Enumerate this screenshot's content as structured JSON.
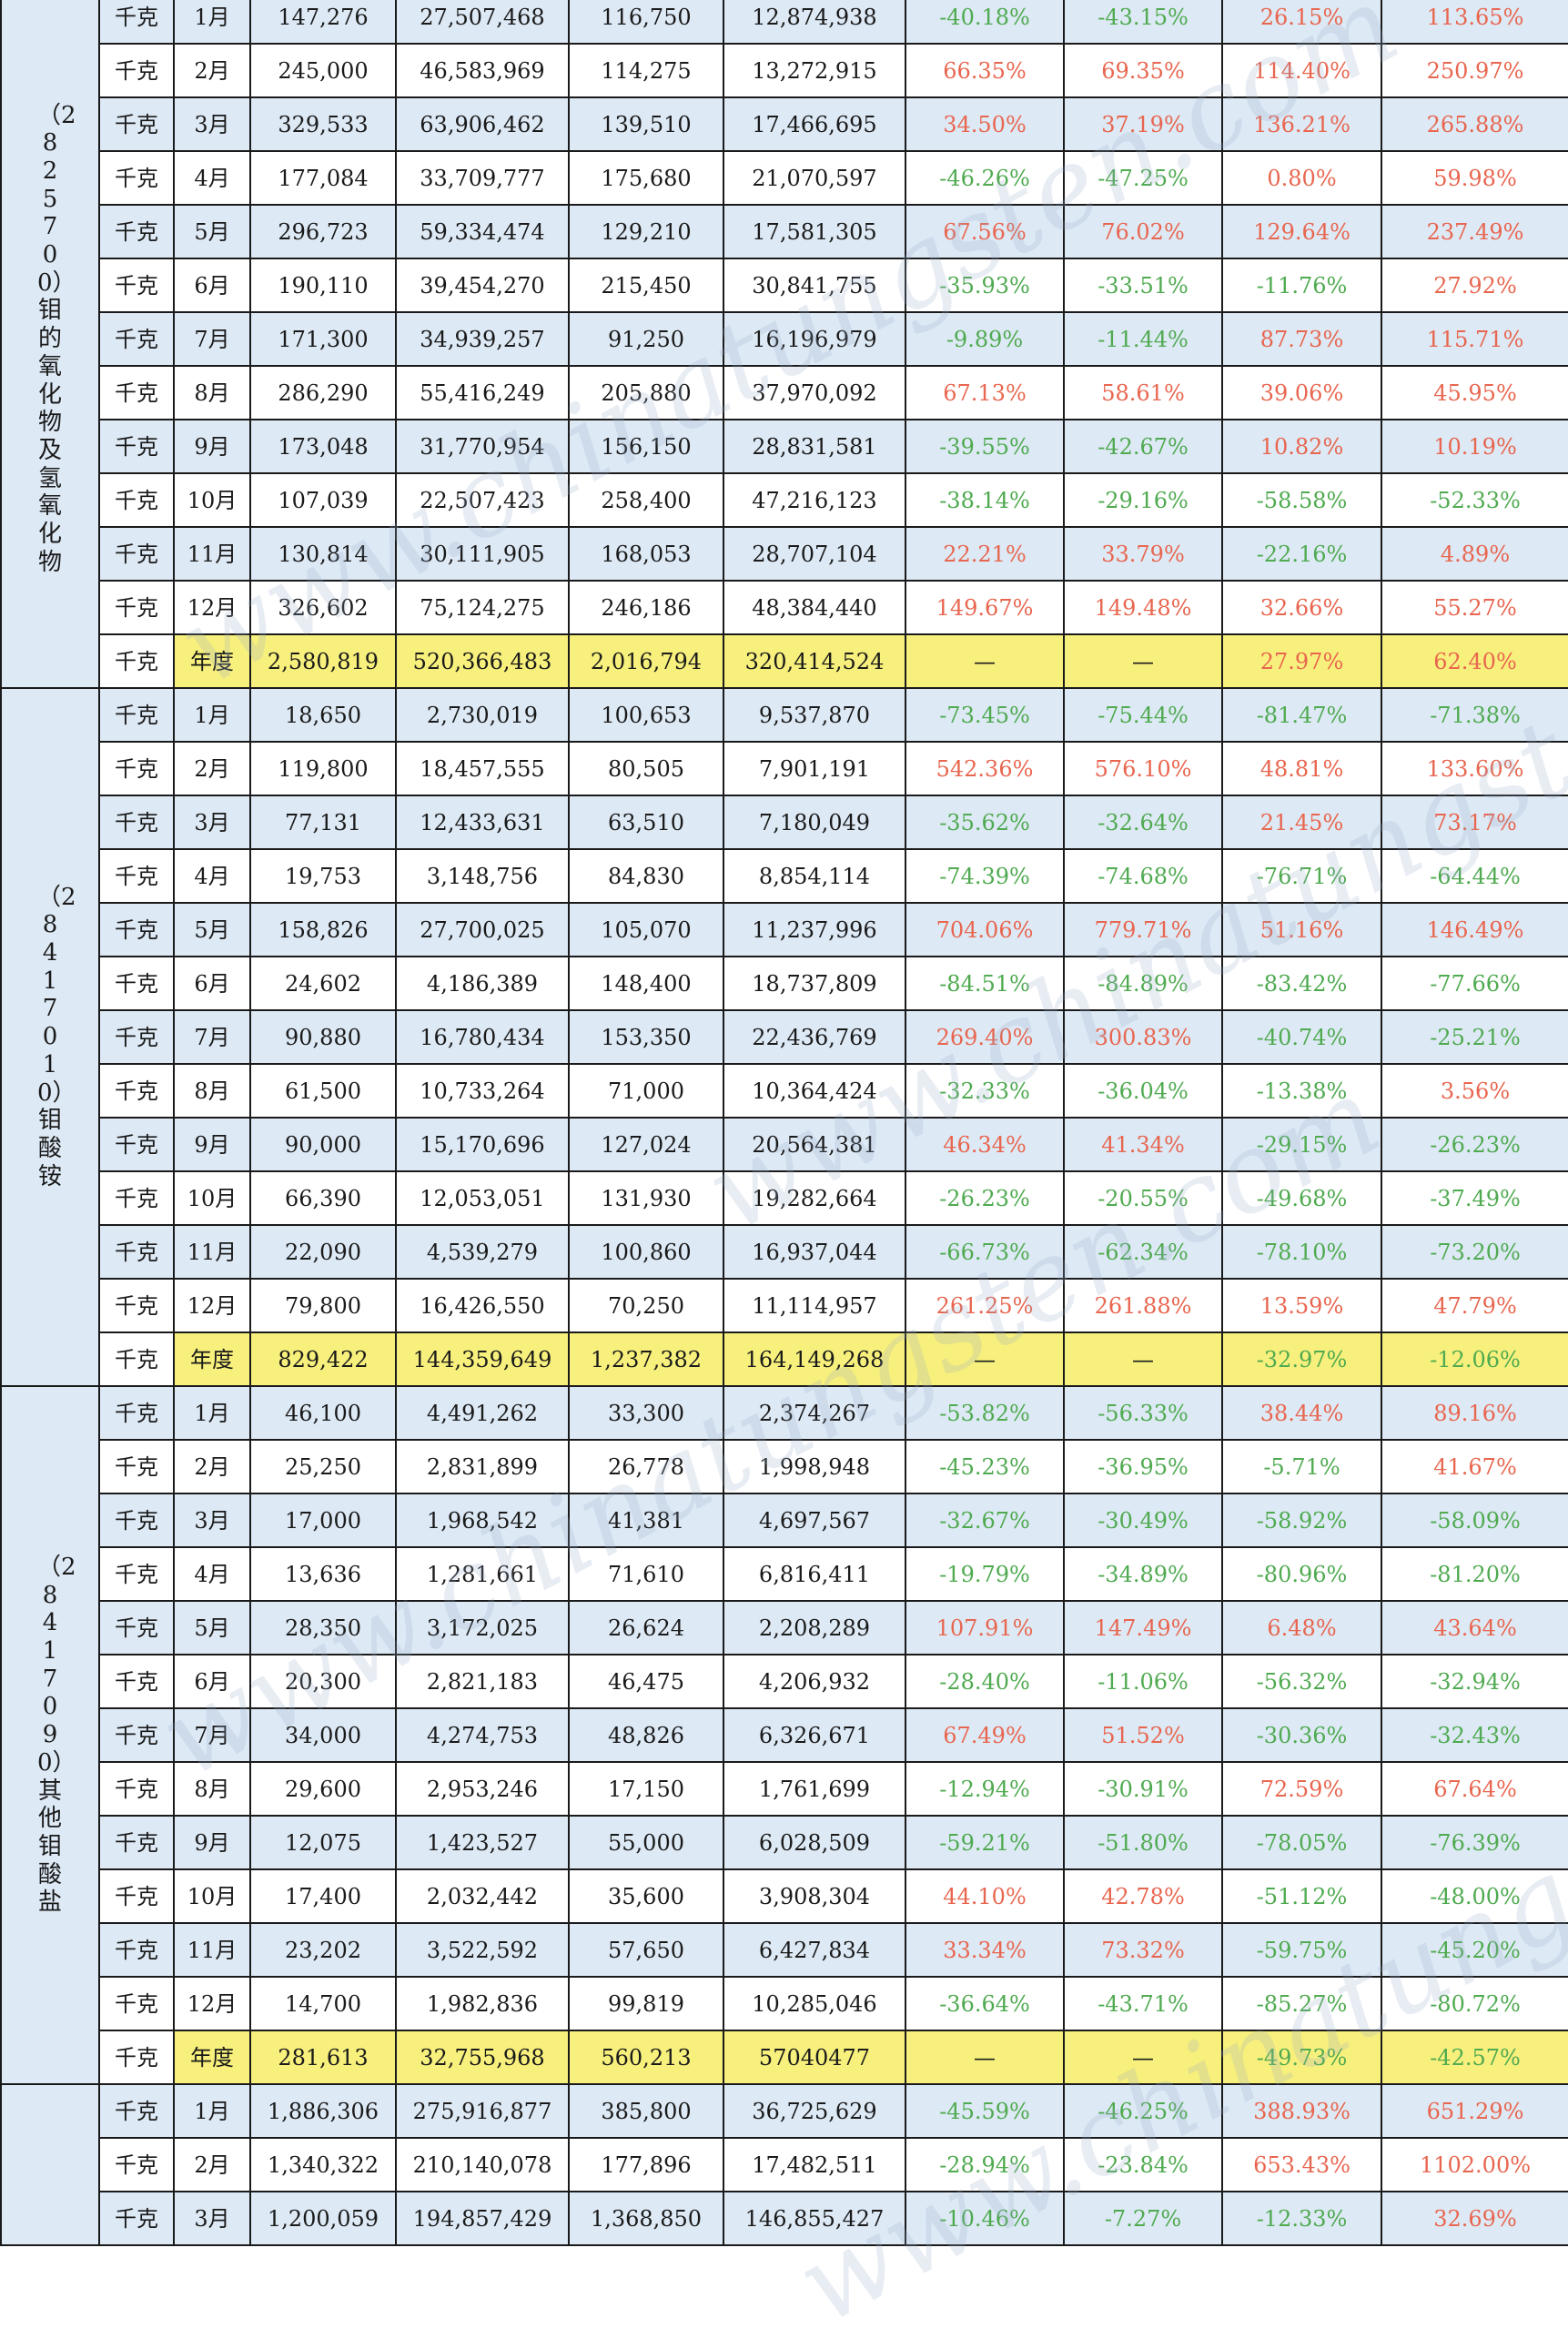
{
  "groups": [
    {
      "label": "（2825700）钼的氧化物及氢氧化物",
      "rows": [
        {
          "unit": "千克",
          "month": "1月",
          "c1": "147,276",
          "c2": "27,507,468",
          "c3": "116,750",
          "c4": "12,874,938",
          "p1": "-40.18%",
          "p2": "-43.15%",
          "p3": "26.15%",
          "p4": "113.65%"
        },
        {
          "unit": "千克",
          "month": "2月",
          "c1": "245,000",
          "c2": "46,583,969",
          "c3": "114,275",
          "c4": "13,272,915",
          "p1": "66.35%",
          "p2": "69.35%",
          "p3": "114.40%",
          "p4": "250.97%"
        },
        {
          "unit": "千克",
          "month": "3月",
          "c1": "329,533",
          "c2": "63,906,462",
          "c3": "139,510",
          "c4": "17,466,695",
          "p1": "34.50%",
          "p2": "37.19%",
          "p3": "136.21%",
          "p4": "265.88%"
        },
        {
          "unit": "千克",
          "month": "4月",
          "c1": "177,084",
          "c2": "33,709,777",
          "c3": "175,680",
          "c4": "21,070,597",
          "p1": "-46.26%",
          "p2": "-47.25%",
          "p3": "0.80%",
          "p4": "59.98%"
        },
        {
          "unit": "千克",
          "month": "5月",
          "c1": "296,723",
          "c2": "59,334,474",
          "c3": "129,210",
          "c4": "17,581,305",
          "p1": "67.56%",
          "p2": "76.02%",
          "p3": "129.64%",
          "p4": "237.49%"
        },
        {
          "unit": "千克",
          "month": "6月",
          "c1": "190,110",
          "c2": "39,454,270",
          "c3": "215,450",
          "c4": "30,841,755",
          "p1": "-35.93%",
          "p2": "-33.51%",
          "p3": "-11.76%",
          "p4": "27.92%"
        },
        {
          "unit": "千克",
          "month": "7月",
          "c1": "171,300",
          "c2": "34,939,257",
          "c3": "91,250",
          "c4": "16,196,979",
          "p1": "-9.89%",
          "p2": "-11.44%",
          "p3": "87.73%",
          "p4": "115.71%"
        },
        {
          "unit": "千克",
          "month": "8月",
          "c1": "286,290",
          "c2": "55,416,249",
          "c3": "205,880",
          "c4": "37,970,092",
          "p1": "67.13%",
          "p2": "58.61%",
          "p3": "39.06%",
          "p4": "45.95%"
        },
        {
          "unit": "千克",
          "month": "9月",
          "c1": "173,048",
          "c2": "31,770,954",
          "c3": "156,150",
          "c4": "28,831,581",
          "p1": "-39.55%",
          "p2": "-42.67%",
          "p3": "10.82%",
          "p4": "10.19%"
        },
        {
          "unit": "千克",
          "month": "10月",
          "c1": "107,039",
          "c2": "22,507,423",
          "c3": "258,400",
          "c4": "47,216,123",
          "p1": "-38.14%",
          "p2": "-29.16%",
          "p3": "-58.58%",
          "p4": "-52.33%"
        },
        {
          "unit": "千克",
          "month": "11月",
          "c1": "130,814",
          "c2": "30,111,905",
          "c3": "168,053",
          "c4": "28,707,104",
          "p1": "22.21%",
          "p2": "33.79%",
          "p3": "-22.16%",
          "p4": "4.89%"
        },
        {
          "unit": "千克",
          "month": "12月",
          "c1": "326,602",
          "c2": "75,124,275",
          "c3": "246,186",
          "c4": "48,384,440",
          "p1": "149.67%",
          "p2": "149.48%",
          "p3": "32.66%",
          "p4": "55.27%"
        },
        {
          "unit": "千克",
          "month": "年度",
          "annual": true,
          "c1": "2,580,819",
          "c2": "520,366,483",
          "c3": "2,016,794",
          "c4": "320,414,524",
          "p1": "—",
          "p2": "—",
          "p3": "27.97%",
          "p4": "62.40%"
        }
      ]
    },
    {
      "label": "（2841701 0）钼酸铵",
      "rows": [
        {
          "unit": "千克",
          "month": "1月",
          "c1": "18,650",
          "c2": "2,730,019",
          "c3": "100,653",
          "c4": "9,537,870",
          "p1": "-73.45%",
          "p2": "-75.44%",
          "p3": "-81.47%",
          "p4": "-71.38%"
        },
        {
          "unit": "千克",
          "month": "2月",
          "c1": "119,800",
          "c2": "18,457,555",
          "c3": "80,505",
          "c4": "7,901,191",
          "p1": "542.36%",
          "p2": "576.10%",
          "p3": "48.81%",
          "p4": "133.60%"
        },
        {
          "unit": "千克",
          "month": "3月",
          "c1": "77,131",
          "c2": "12,433,631",
          "c3": "63,510",
          "c4": "7,180,049",
          "p1": "-35.62%",
          "p2": "-32.64%",
          "p3": "21.45%",
          "p4": "73.17%"
        },
        {
          "unit": "千克",
          "month": "4月",
          "c1": "19,753",
          "c2": "3,148,756",
          "c3": "84,830",
          "c4": "8,854,114",
          "p1": "-74.39%",
          "p2": "-74.68%",
          "p3": "-76.71%",
          "p4": "-64.44%"
        },
        {
          "unit": "千克",
          "month": "5月",
          "c1": "158,826",
          "c2": "27,700,025",
          "c3": "105,070",
          "c4": "11,237,996",
          "p1": "704.06%",
          "p2": "779.71%",
          "p3": "51.16%",
          "p4": "146.49%"
        },
        {
          "unit": "千克",
          "month": "6月",
          "c1": "24,602",
          "c2": "4,186,389",
          "c3": "148,400",
          "c4": "18,737,809",
          "p1": "-84.51%",
          "p2": "-84.89%",
          "p3": "-83.42%",
          "p4": "-77.66%"
        },
        {
          "unit": "千克",
          "month": "7月",
          "c1": "90,880",
          "c2": "16,780,434",
          "c3": "153,350",
          "c4": "22,436,769",
          "p1": "269.40%",
          "p2": "300.83%",
          "p3": "-40.74%",
          "p4": "-25.21%"
        },
        {
          "unit": "千克",
          "month": "8月",
          "c1": "61,500",
          "c2": "10,733,264",
          "c3": "71,000",
          "c4": "10,364,424",
          "p1": "-32.33%",
          "p2": "-36.04%",
          "p3": "-13.38%",
          "p4": "3.56%"
        },
        {
          "unit": "千克",
          "month": "9月",
          "c1": "90,000",
          "c2": "15,170,696",
          "c3": "127,024",
          "c4": "20,564,381",
          "p1": "46.34%",
          "p2": "41.34%",
          "p3": "-29.15%",
          "p4": "-26.23%"
        },
        {
          "unit": "千克",
          "month": "10月",
          "c1": "66,390",
          "c2": "12,053,051",
          "c3": "131,930",
          "c4": "19,282,664",
          "p1": "-26.23%",
          "p2": "-20.55%",
          "p3": "-49.68%",
          "p4": "-37.49%"
        },
        {
          "unit": "千克",
          "month": "11月",
          "c1": "22,090",
          "c2": "4,539,279",
          "c3": "100,860",
          "c4": "16,937,044",
          "p1": "-66.73%",
          "p2": "-62.34%",
          "p3": "-78.10%",
          "p4": "-73.20%"
        },
        {
          "unit": "千克",
          "month": "12月",
          "c1": "79,800",
          "c2": "16,426,550",
          "c3": "70,250",
          "c4": "11,114,957",
          "p1": "261.25%",
          "p2": "261.88%",
          "p3": "13.59%",
          "p4": "47.79%"
        },
        {
          "unit": "千克",
          "month": "年度",
          "annual": true,
          "c1": "829,422",
          "c2": "144,359,649",
          "c3": "1,237,382",
          "c4": "164,149,268",
          "p1": "—",
          "p2": "—",
          "p3": "-32.97%",
          "p4": "-12.06%"
        }
      ]
    },
    {
      "label": "（28417090）其他钼酸盐",
      "rows": [
        {
          "unit": "千克",
          "month": "1月",
          "c1": "46,100",
          "c2": "4,491,262",
          "c3": "33,300",
          "c4": "2,374,267",
          "p1": "-53.82%",
          "p2": "-56.33%",
          "p3": "38.44%",
          "p4": "89.16%"
        },
        {
          "unit": "千克",
          "month": "2月",
          "c1": "25,250",
          "c2": "2,831,899",
          "c3": "26,778",
          "c4": "1,998,948",
          "p1": "-45.23%",
          "p2": "-36.95%",
          "p3": "-5.71%",
          "p4": "41.67%"
        },
        {
          "unit": "千克",
          "month": "3月",
          "c1": "17,000",
          "c2": "1,968,542",
          "c3": "41,381",
          "c4": "4,697,567",
          "p1": "-32.67%",
          "p2": "-30.49%",
          "p3": "-58.92%",
          "p4": "-58.09%"
        },
        {
          "unit": "千克",
          "month": "4月",
          "c1": "13,636",
          "c2": "1,281,661",
          "c3": "71,610",
          "c4": "6,816,411",
          "p1": "-19.79%",
          "p2": "-34.89%",
          "p3": "-80.96%",
          "p4": "-81.20%"
        },
        {
          "unit": "千克",
          "month": "5月",
          "c1": "28,350",
          "c2": "3,172,025",
          "c3": "26,624",
          "c4": "2,208,289",
          "p1": "107.91%",
          "p2": "147.49%",
          "p3": "6.48%",
          "p4": "43.64%"
        },
        {
          "unit": "千克",
          "month": "6月",
          "c1": "20,300",
          "c2": "2,821,183",
          "c3": "46,475",
          "c4": "4,206,932",
          "p1": "-28.40%",
          "p2": "-11.06%",
          "p3": "-56.32%",
          "p4": "-32.94%"
        },
        {
          "unit": "千克",
          "month": "7月",
          "c1": "34,000",
          "c2": "4,274,753",
          "c3": "48,826",
          "c4": "6,326,671",
          "p1": "67.49%",
          "p2": "51.52%",
          "p3": "-30.36%",
          "p4": "-32.43%"
        },
        {
          "unit": "千克",
          "month": "8月",
          "c1": "29,600",
          "c2": "2,953,246",
          "c3": "17,150",
          "c4": "1,761,699",
          "p1": "-12.94%",
          "p2": "-30.91%",
          "p3": "72.59%",
          "p4": "67.64%"
        },
        {
          "unit": "千克",
          "month": "9月",
          "c1": "12,075",
          "c2": "1,423,527",
          "c3": "55,000",
          "c4": "6,028,509",
          "p1": "-59.21%",
          "p2": "-51.80%",
          "p3": "-78.05%",
          "p4": "-76.39%"
        },
        {
          "unit": "千克",
          "month": "10月",
          "c1": "17,400",
          "c2": "2,032,442",
          "c3": "35,600",
          "c4": "3,908,304",
          "p1": "44.10%",
          "p2": "42.78%",
          "p3": "-51.12%",
          "p4": "-48.00%"
        },
        {
          "unit": "千克",
          "month": "11月",
          "c1": "23,202",
          "c2": "3,522,592",
          "c3": "57,650",
          "c4": "6,427,834",
          "p1": "33.34%",
          "p2": "73.32%",
          "p3": "-59.75%",
          "p4": "-45.20%"
        },
        {
          "unit": "千克",
          "month": "12月",
          "c1": "14,700",
          "c2": "1,982,836",
          "c3": "99,819",
          "c4": "10,285,046",
          "p1": "-36.64%",
          "p2": "-43.71%",
          "p3": "-85.27%",
          "p4": "-80.72%"
        },
        {
          "unit": "千克",
          "month": "年度",
          "annual": true,
          "c1": "281,613",
          "c2": "32,755,968",
          "c3": "560,213",
          "c4": "57040477",
          "p1": "—",
          "p2": "—",
          "p3": "-49.73%",
          "p4": "-42.57%"
        }
      ]
    },
    {
      "label": "",
      "rows": [
        {
          "unit": "千克",
          "month": "1月",
          "c1": "1,886,306",
          "c2": "275,916,877",
          "c3": "385,800",
          "c4": "36,725,629",
          "p1": "-45.59%",
          "p2": "-46.25%",
          "p3": "388.93%",
          "p4": "651.29%"
        },
        {
          "unit": "千克",
          "month": "2月",
          "c1": "1,340,322",
          "c2": "210,140,078",
          "c3": "177,896",
          "c4": "17,482,511",
          "p1": "-28.94%",
          "p2": "-23.84%",
          "p3": "653.43%",
          "p4": "1102.00%"
        },
        {
          "unit": "千克",
          "month": "3月",
          "c1": "1,200,059",
          "c2": "194,857,429",
          "c3": "1,368,850",
          "c4": "146,855,427",
          "p1": "-10.46%",
          "p2": "-7.27%",
          "p3": "-12.33%",
          "p4": "32.69%"
        }
      ]
    }
  ],
  "colors": {
    "positive": "#e8664f",
    "negative": "#4faa50",
    "annual_bg": "#f8f07c",
    "row_tint": "#dde9f5"
  }
}
